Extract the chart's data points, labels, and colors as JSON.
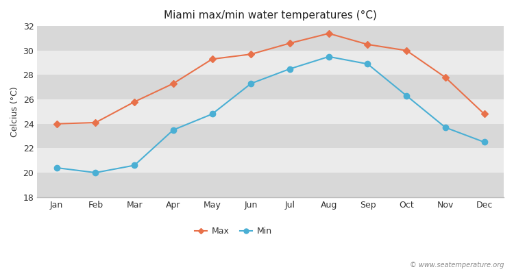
{
  "title": "Miami max/min water temperatures (°C)",
  "ylabel": "Celcius (°C)",
  "months": [
    "Jan",
    "Feb",
    "Mar",
    "Apr",
    "May",
    "Jun",
    "Jul",
    "Aug",
    "Sep",
    "Oct",
    "Nov",
    "Dec"
  ],
  "max_temps": [
    24.0,
    24.1,
    25.8,
    27.3,
    29.3,
    29.7,
    30.6,
    31.4,
    30.5,
    30.0,
    27.8,
    24.8
  ],
  "min_temps": [
    20.4,
    20.0,
    20.6,
    23.5,
    24.8,
    27.3,
    28.5,
    29.5,
    28.9,
    26.3,
    23.7,
    22.5
  ],
  "max_color": "#e8714a",
  "min_color": "#4aafd4",
  "fig_bg_color": "#ffffff",
  "plot_bg_light": "#ebebeb",
  "plot_bg_dark": "#d8d8d8",
  "ylim": [
    18,
    32
  ],
  "yticks": [
    18,
    20,
    22,
    24,
    26,
    28,
    30,
    32
  ],
  "watermark": "© www.seatemperature.org",
  "legend_labels": [
    "Max",
    "Min"
  ]
}
